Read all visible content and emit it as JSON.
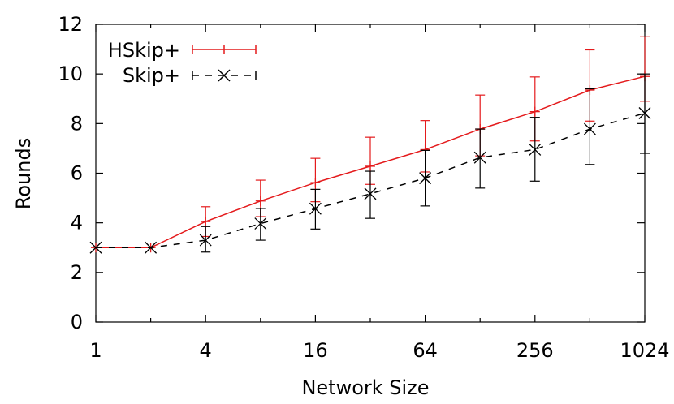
{
  "chart_data": {
    "type": "line",
    "xlabel": "Network Size",
    "ylabel": "Rounds",
    "x_scale": "log2",
    "x_ticks": [
      1,
      4,
      16,
      64,
      256,
      1024
    ],
    "x": [
      1,
      2,
      4,
      8,
      16,
      32,
      64,
      128,
      256,
      512,
      1024
    ],
    "ylim": [
      0,
      12
    ],
    "y_ticks": [
      0,
      2,
      4,
      6,
      8,
      10,
      12
    ],
    "grid": false,
    "legend_position": "top-left",
    "series": [
      {
        "name": "HSkip+",
        "color": "#e41a1c",
        "line_style": "solid",
        "marker": "plus",
        "values": [
          3.0,
          3.0,
          4.05,
          4.88,
          5.62,
          6.28,
          6.95,
          7.78,
          8.48,
          9.35,
          9.9
        ],
        "error_low": [
          3.0,
          3.0,
          3.45,
          4.25,
          4.85,
          5.55,
          6.05,
          6.7,
          7.3,
          8.1,
          8.9
        ],
        "error_high": [
          3.0,
          3.0,
          4.65,
          5.72,
          6.6,
          7.45,
          8.12,
          9.15,
          9.88,
          10.97,
          11.5
        ]
      },
      {
        "name": "Skip+",
        "color": "#000000",
        "line_style": "dashed",
        "marker": "x",
        "values": [
          3.0,
          3.0,
          3.3,
          3.97,
          4.57,
          5.17,
          5.8,
          6.63,
          6.95,
          7.78,
          8.42
        ],
        "error_low": [
          3.0,
          3.0,
          2.82,
          3.3,
          3.75,
          4.18,
          4.68,
          5.4,
          5.68,
          6.35,
          6.8
        ],
        "error_high": [
          3.0,
          3.0,
          3.85,
          4.58,
          5.35,
          6.08,
          6.92,
          7.78,
          8.25,
          9.4,
          10.0
        ]
      }
    ]
  }
}
